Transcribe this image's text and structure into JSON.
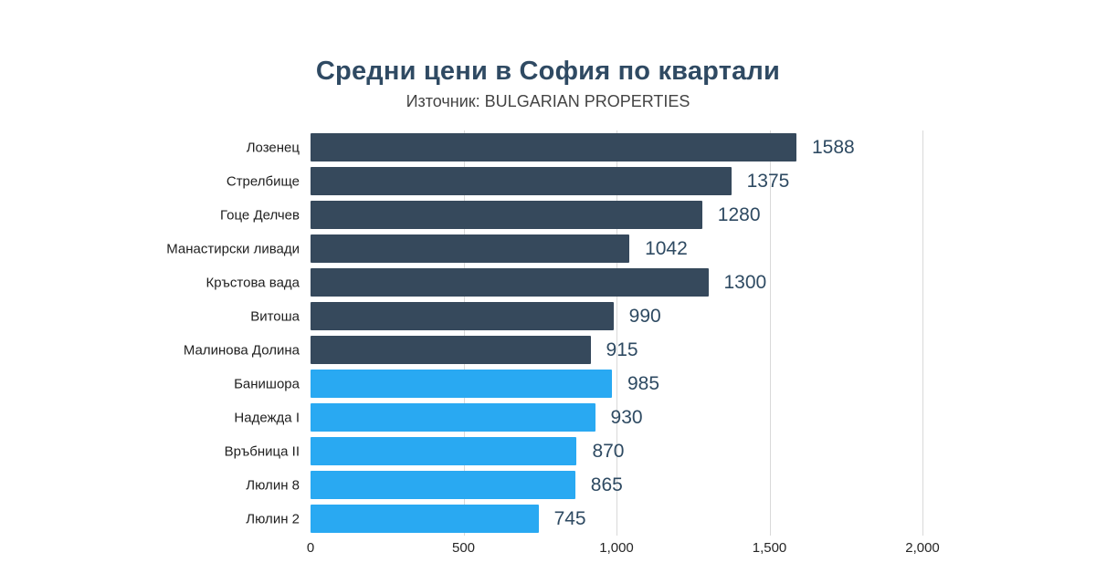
{
  "chart_data": {
    "type": "bar",
    "orientation": "horizontal",
    "title": "Средни цени в София по квартали",
    "subtitle": "Източник: BULGARIAN PROPERTIES",
    "categories": [
      "Лозенец",
      "Стрелбище",
      "Гоце Делчев",
      "Манастирски ливади",
      "Кръстова вада",
      "Витоша",
      "Малинова Долина",
      "Банишора",
      "Надежда I",
      "Връбница II",
      "Люлин 8",
      "Люлин 2"
    ],
    "values": [
      1588,
      1375,
      1280,
      1042,
      1300,
      990,
      915,
      985,
      930,
      870,
      865,
      745
    ],
    "value_labels": [
      "1588",
      "1375",
      "1280",
      "1042",
      "1300",
      "990",
      "915",
      "985",
      "930",
      "870",
      "865",
      "745"
    ],
    "bar_groups": [
      "dark",
      "dark",
      "dark",
      "dark",
      "dark",
      "dark",
      "dark",
      "light",
      "light",
      "light",
      "light",
      "light"
    ],
    "xlim": [
      0,
      2000
    ],
    "x_ticks": [
      {
        "value": 0,
        "label": "0"
      },
      {
        "value": 500,
        "label": "500"
      },
      {
        "value": 1000,
        "label": "1,000"
      },
      {
        "value": 1500,
        "label": "1,500"
      },
      {
        "value": 2000,
        "label": "2,000"
      }
    ],
    "grid": "vertical",
    "legend": "none",
    "palette": {
      "dark_bar": "#36495C",
      "light_bar": "#29A9F2",
      "title": "#2F4A63",
      "subtitle": "#444444",
      "value_label": "#2E4A62",
      "category_label": "#1F1F1F",
      "tick_label": "#262626",
      "gridline": "#D9D9D9",
      "background": "#FFFFFF"
    }
  }
}
